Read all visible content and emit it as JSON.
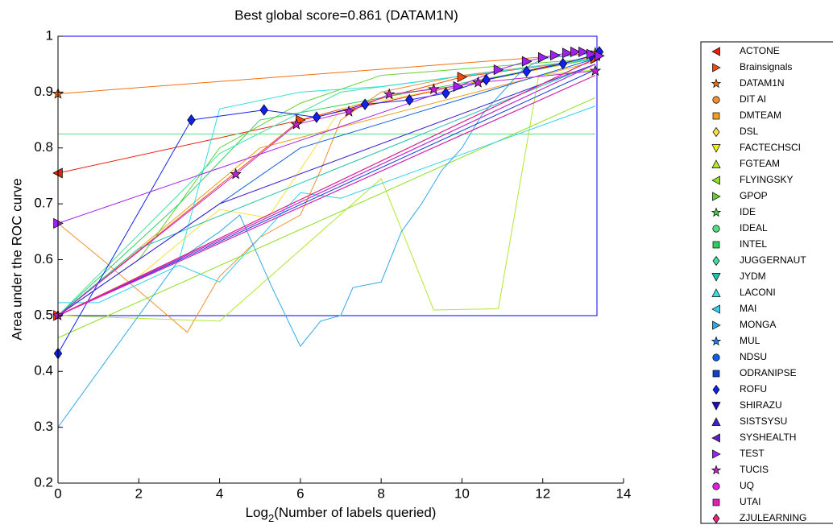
{
  "chart_data": {
    "type": "line",
    "title": "Best global score=0.861 (DATAM1N)",
    "xlabel": [
      "Log",
      "2",
      "(Number of labels queried)"
    ],
    "ylabel": "Area under the ROC curve",
    "xlim": [
      0,
      14
    ],
    "ylim": [
      0.2,
      1
    ],
    "xticks": [
      0,
      2,
      4,
      6,
      8,
      10,
      12,
      14
    ],
    "yticks": [
      0.2,
      0.3,
      0.4,
      0.5,
      0.6,
      0.7,
      0.8,
      0.9,
      1
    ],
    "legend": "outside-right",
    "series": [
      {
        "name": "ACTONE",
        "color": "#e8200a",
        "marker": "<",
        "markers": true,
        "x": [
          0,
          13.3
        ],
        "values": [
          0.755,
          0.965
        ]
      },
      {
        "name": "Brainsignals",
        "color": "#f04a0a",
        "marker": ">",
        "markers": true,
        "x": [
          0,
          6,
          10,
          13.3
        ],
        "values": [
          0.5,
          0.85,
          0.927,
          0.96
        ]
      },
      {
        "name": "DATAM1N",
        "color": "#f07010",
        "marker": "*",
        "markers": true,
        "x": [
          0,
          13.3
        ],
        "values": [
          0.897,
          0.97
        ]
      },
      {
        "name": "DIT AI",
        "color": "#f09030",
        "marker": "o",
        "markers": false,
        "x": [
          0,
          1.1,
          3.2,
          4,
          5,
          6,
          6.5,
          7,
          8,
          10,
          13.3
        ],
        "values": [
          0.665,
          0.6,
          0.47,
          0.57,
          0.64,
          0.68,
          0.76,
          0.85,
          0.9,
          0.93,
          0.96
        ]
      },
      {
        "name": "DMTEAM",
        "color": "#f0a020",
        "marker": "s",
        "markers": false,
        "x": [
          0,
          5,
          13.3
        ],
        "values": [
          0.5,
          0.8,
          0.955
        ]
      },
      {
        "name": "DSL",
        "color": "#f8e040",
        "marker": "d",
        "markers": false,
        "x": [
          0,
          2,
          4,
          5.2,
          7,
          13.3
        ],
        "values": [
          0.5,
          0.57,
          0.69,
          0.675,
          0.87,
          0.96
        ]
      },
      {
        "name": "FACTECHSCI",
        "color": "#f0f000",
        "marker": "v",
        "markers": false,
        "x": [
          0,
          13.3
        ],
        "values": [
          0.5,
          0.95
        ]
      },
      {
        "name": "FGTEAM",
        "color": "#b0e830",
        "marker": "^",
        "markers": false,
        "x": [
          0,
          4,
          8,
          9.3,
          10.9,
          11.9,
          13.3
        ],
        "values": [
          0.5,
          0.49,
          0.745,
          0.51,
          0.512,
          0.93,
          0.94
        ]
      },
      {
        "name": "FLYINGSKY",
        "color": "#90e020",
        "marker": "<",
        "markers": false,
        "x": [
          0,
          13.3
        ],
        "values": [
          0.46,
          0.89
        ]
      },
      {
        "name": "GPOP",
        "color": "#60d030",
        "marker": ">",
        "markers": false,
        "x": [
          0,
          2,
          4,
          6,
          8,
          13.3
        ],
        "values": [
          0.5,
          0.6,
          0.8,
          0.88,
          0.93,
          0.96
        ]
      },
      {
        "name": "IDE",
        "color": "#40d040",
        "marker": "*",
        "markers": false,
        "x": [
          0,
          13.3
        ],
        "values": [
          0.5,
          0.95
        ]
      },
      {
        "name": "IDEAL",
        "color": "#50e080",
        "marker": "o",
        "markers": false,
        "x": [
          0,
          13.3
        ],
        "values": [
          0.825,
          0.825
        ]
      },
      {
        "name": "INTEL",
        "color": "#30d060",
        "marker": "s",
        "markers": false,
        "x": [
          0,
          3,
          5,
          13.3
        ],
        "values": [
          0.5,
          0.7,
          0.85,
          0.96
        ]
      },
      {
        "name": "JUGGERNAUT",
        "color": "#40e0a0",
        "marker": "d",
        "markers": false,
        "x": [
          0,
          4,
          7,
          13.3
        ],
        "values": [
          0.5,
          0.79,
          0.9,
          0.96
        ]
      },
      {
        "name": "JYDM",
        "color": "#20c0b0",
        "marker": "v",
        "markers": false,
        "x": [
          0,
          2,
          13.3
        ],
        "values": [
          0.5,
          0.62,
          0.95
        ]
      },
      {
        "name": "LACONI",
        "color": "#30e0e0",
        "marker": "^",
        "markers": false,
        "x": [
          0,
          3,
          4,
          6,
          8,
          13.3
        ],
        "values": [
          0.5,
          0.6,
          0.87,
          0.9,
          0.91,
          0.96
        ]
      },
      {
        "name": "MAI",
        "color": "#30d0f0",
        "marker": "<",
        "markers": false,
        "x": [
          0,
          1,
          3,
          4,
          6,
          7,
          13.3
        ],
        "values": [
          0.523,
          0.523,
          0.59,
          0.56,
          0.72,
          0.71,
          0.875
        ]
      },
      {
        "name": "MONGA",
        "color": "#30a8e8",
        "marker": ">",
        "markers": false,
        "x": [
          0,
          1,
          2,
          3,
          4,
          4.5,
          5.3,
          6,
          6.5,
          7,
          7.3,
          8,
          8.5,
          9,
          9.5,
          10,
          10.5,
          11,
          11.5,
          12,
          13.3
        ],
        "values": [
          0.3,
          0.4,
          0.5,
          0.6,
          0.65,
          0.68,
          0.55,
          0.445,
          0.49,
          0.5,
          0.55,
          0.56,
          0.65,
          0.7,
          0.76,
          0.8,
          0.86,
          0.9,
          0.94,
          0.96,
          0.97
        ]
      },
      {
        "name": "MUL",
        "color": "#2080f0",
        "marker": "*",
        "markers": false,
        "x": [
          0,
          13.3
        ],
        "values": [
          0.5,
          0.95
        ]
      },
      {
        "name": "NDSU",
        "color": "#1060e0",
        "marker": "o",
        "markers": false,
        "x": [
          0,
          6,
          13.3
        ],
        "values": [
          0.5,
          0.8,
          0.96
        ]
      },
      {
        "name": "ODRANIPSE",
        "color": "#1040d0",
        "marker": "s",
        "markers": false,
        "x": [
          0,
          13.3
        ],
        "values": [
          0.5,
          0.94
        ]
      },
      {
        "name": "ROFU",
        "color": "#1020f0",
        "marker": "d",
        "markers": true,
        "x": [
          0,
          3.3,
          5.1,
          6.4,
          7.6,
          8.7,
          9.6,
          10.6,
          11.6,
          12.5,
          13.2,
          13.4
        ],
        "values": [
          0.432,
          0.85,
          0.868,
          0.855,
          0.878,
          0.886,
          0.898,
          0.922,
          0.937,
          0.951,
          0.965,
          0.972
        ]
      },
      {
        "name": "SHIRAZU",
        "color": "#2010c0",
        "marker": "v",
        "markers": false,
        "x": [
          0,
          13.3
        ],
        "values": [
          0.5,
          0.96
        ]
      },
      {
        "name": "SISTSYSU",
        "color": "#4020d0",
        "marker": "^",
        "markers": false,
        "x": [
          0,
          4,
          13.3
        ],
        "values": [
          0.5,
          0.7,
          0.95
        ]
      },
      {
        "name": "SYSHEALTH",
        "color": "#6020c0",
        "marker": "<",
        "markers": false,
        "x": [
          0,
          13.3
        ],
        "values": [
          0.5,
          0.93
        ]
      },
      {
        "name": "TEST",
        "color": "#a020f0",
        "marker": ">",
        "markers": true,
        "x": [
          0,
          9.9,
          10.9,
          11.6,
          12,
          12.3,
          12.6,
          12.8,
          13,
          13.2,
          13.4
        ],
        "values": [
          0.665,
          0.91,
          0.94,
          0.955,
          0.962,
          0.966,
          0.97,
          0.972,
          0.972,
          0.968,
          0.965
        ]
      },
      {
        "name": "TUCIS",
        "color": "#c020d0",
        "marker": "*",
        "markers": true,
        "x": [
          0,
          4.4,
          5.9,
          7.2,
          8.2,
          9.3,
          10.4,
          13.3
        ],
        "values": [
          0.5,
          0.753,
          0.842,
          0.865,
          0.896,
          0.905,
          0.917,
          0.938
        ]
      },
      {
        "name": "UQ",
        "color": "#e020e0",
        "marker": "o",
        "markers": false,
        "x": [
          0,
          13.3
        ],
        "values": [
          0.5,
          0.95
        ]
      },
      {
        "name": "UTAI",
        "color": "#e020b0",
        "marker": "s",
        "markers": false,
        "x": [
          0,
          13.3
        ],
        "values": [
          0.5,
          0.93
        ]
      },
      {
        "name": "ZJULEARNING",
        "color": "#f02080",
        "marker": "d",
        "markers": false,
        "x": [
          0,
          13.3
        ],
        "values": [
          0.5,
          0.96
        ]
      }
    ]
  }
}
